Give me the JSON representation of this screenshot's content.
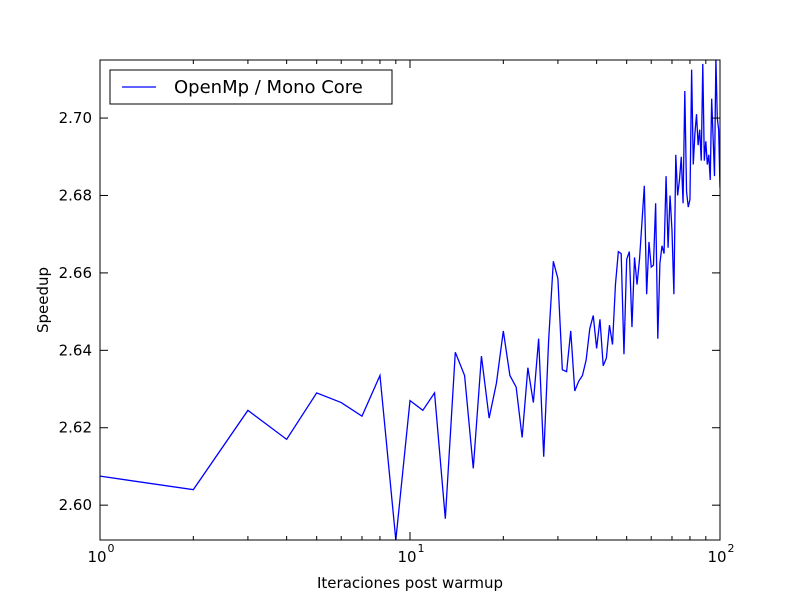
{
  "chart_data": {
    "type": "line",
    "title": "",
    "xlabel": "Iteraciones post warmup",
    "ylabel": "Speedup",
    "xscale": "log",
    "xlim": [
      1,
      100
    ],
    "ylim": [
      2.591,
      2.715
    ],
    "grid": false,
    "legend_position": "top-left",
    "x_ticks": [
      1,
      10,
      100
    ],
    "x_tick_labels": [
      {
        "base": "10",
        "exp": "0"
      },
      {
        "base": "10",
        "exp": "1"
      },
      {
        "base": "10",
        "exp": "2"
      }
    ],
    "y_ticks": [
      2.6,
      2.62,
      2.64,
      2.66,
      2.68,
      2.7
    ],
    "y_tick_labels": [
      "2.60",
      "2.62",
      "2.64",
      "2.66",
      "2.68",
      "2.70"
    ],
    "series": [
      {
        "name": "OpenMp / Mono Core",
        "color": "#0000ff",
        "x": [
          1,
          2,
          3,
          4,
          5,
          6,
          7,
          8,
          9,
          10,
          11,
          12,
          13,
          14,
          15,
          16,
          17,
          18,
          19,
          20,
          21,
          22,
          23,
          24,
          25,
          26,
          27,
          28,
          29,
          30,
          31,
          32,
          33,
          34,
          35,
          36,
          37,
          38,
          39,
          40,
          41,
          42,
          43,
          44,
          45,
          46,
          47,
          48,
          49,
          50,
          51,
          52,
          53,
          54,
          55,
          56,
          57,
          58,
          59,
          60,
          61,
          62,
          63,
          64,
          65,
          66,
          67,
          68,
          69,
          70,
          71,
          72,
          73,
          74,
          75,
          76,
          77,
          78,
          79,
          80,
          81,
          82,
          83,
          84,
          85,
          86,
          87,
          88,
          89,
          90,
          91,
          92,
          93,
          94,
          95,
          96,
          97,
          98,
          99,
          100
        ],
        "y": [
          2.6075,
          2.604,
          2.6245,
          2.617,
          2.629,
          2.6265,
          2.623,
          2.6335,
          2.591,
          2.627,
          2.6245,
          2.629,
          2.5965,
          2.6395,
          2.6335,
          2.6095,
          2.6385,
          2.6225,
          2.6315,
          2.645,
          2.6335,
          2.6305,
          2.6175,
          2.6355,
          2.6265,
          2.643,
          2.6125,
          2.6425,
          2.663,
          2.6585,
          2.635,
          2.6345,
          2.645,
          2.6295,
          2.632,
          2.6335,
          2.6375,
          2.6455,
          2.649,
          2.6405,
          2.648,
          2.636,
          2.638,
          2.6465,
          2.6415,
          2.657,
          2.6655,
          2.665,
          2.639,
          2.6635,
          2.6655,
          2.646,
          2.664,
          2.657,
          2.6635,
          2.673,
          2.6825,
          2.6545,
          2.668,
          2.6615,
          2.662,
          2.678,
          2.643,
          2.6625,
          2.667,
          2.665,
          2.685,
          2.6665,
          2.68,
          2.671,
          2.6545,
          2.6905,
          2.68,
          2.684,
          2.69,
          2.678,
          2.707,
          2.681,
          2.677,
          2.679,
          2.7125,
          2.688,
          2.696,
          2.701,
          2.693,
          2.697,
          2.689,
          2.714,
          2.689,
          2.694,
          2.688,
          2.6905,
          2.684,
          2.705,
          2.695,
          2.685,
          2.7155,
          2.7,
          2.697,
          2.682
        ]
      }
    ]
  }
}
